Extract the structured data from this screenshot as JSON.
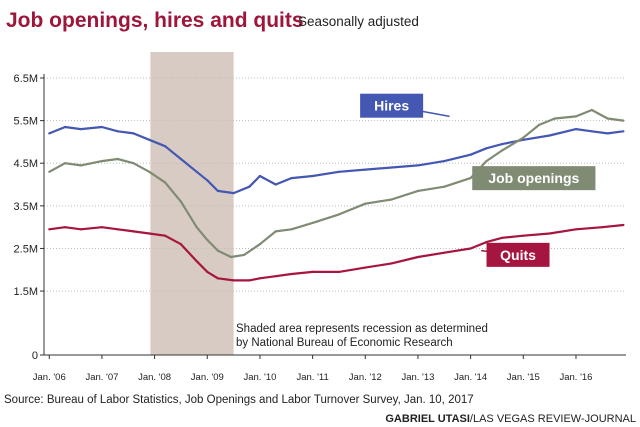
{
  "chart_data": {
    "type": "line",
    "title": "Job openings, hires and quits",
    "subtitle": "Seasonally adjusted",
    "y_tick_labels": [
      "0",
      "1.5M",
      "2.5M",
      "3.5M",
      "4.5M",
      "5.5M",
      "6.5M"
    ],
    "y_tick_values": [
      0,
      1.5,
      2.5,
      3.5,
      4.5,
      5.5,
      6.5
    ],
    "y_unit": "millions",
    "ylim": [
      0,
      6.5
    ],
    "x_tick_labels": [
      "Jan. '06",
      "Jan. '07",
      "Jan. '08",
      "Jan. '09",
      "Jan. '10",
      "Jan. '11",
      "Jan. '12",
      "Jan. '13",
      "Jan. '14",
      "Jan. '15",
      "Jan. '16"
    ],
    "x_tick_values": [
      2006,
      2007,
      2008,
      2009,
      2010,
      2011,
      2012,
      2013,
      2014,
      2015,
      2016
    ],
    "xlim": [
      2005.9,
      2016.95
    ],
    "grid": "horizontal",
    "recession": {
      "start": 2007.92,
      "end": 2009.5,
      "color": "#d8cbc4"
    },
    "note": [
      "Shaded area represents recession as determined",
      "by National Bureau of Economic Research"
    ],
    "source": "Source: Bureau of Labor Statistics, Job Openings and Labor Turnover Survey, Jan. 10, 2017",
    "credit_name": "GABRIEL UTASI",
    "credit_org": "/LAS VEGAS REVIEW-JOURNAL",
    "series": [
      {
        "name": "Hires",
        "color": "#4457b3",
        "points": [
          [
            2006.0,
            5.2
          ],
          [
            2006.3,
            5.35
          ],
          [
            2006.6,
            5.3
          ],
          [
            2007.0,
            5.35
          ],
          [
            2007.3,
            5.25
          ],
          [
            2007.6,
            5.2
          ],
          [
            2007.9,
            5.05
          ],
          [
            2008.2,
            4.9
          ],
          [
            2008.5,
            4.6
          ],
          [
            2008.8,
            4.3
          ],
          [
            2009.0,
            4.1
          ],
          [
            2009.2,
            3.85
          ],
          [
            2009.5,
            3.8
          ],
          [
            2009.8,
            3.95
          ],
          [
            2010.0,
            4.2
          ],
          [
            2010.3,
            4.0
          ],
          [
            2010.6,
            4.15
          ],
          [
            2011.0,
            4.2
          ],
          [
            2011.5,
            4.3
          ],
          [
            2012.0,
            4.35
          ],
          [
            2012.5,
            4.4
          ],
          [
            2013.0,
            4.45
          ],
          [
            2013.5,
            4.55
          ],
          [
            2014.0,
            4.7
          ],
          [
            2014.3,
            4.85
          ],
          [
            2014.6,
            4.95
          ],
          [
            2015.0,
            5.05
          ],
          [
            2015.5,
            5.15
          ],
          [
            2016.0,
            5.3
          ],
          [
            2016.3,
            5.25
          ],
          [
            2016.6,
            5.2
          ],
          [
            2016.9,
            5.25
          ]
        ]
      },
      {
        "name": "Job openings",
        "color": "#7f8b73",
        "points": [
          [
            2006.0,
            4.3
          ],
          [
            2006.3,
            4.5
          ],
          [
            2006.6,
            4.45
          ],
          [
            2007.0,
            4.55
          ],
          [
            2007.3,
            4.6
          ],
          [
            2007.6,
            4.5
          ],
          [
            2007.9,
            4.3
          ],
          [
            2008.2,
            4.05
          ],
          [
            2008.5,
            3.6
          ],
          [
            2008.8,
            3.0
          ],
          [
            2009.0,
            2.7
          ],
          [
            2009.2,
            2.45
          ],
          [
            2009.45,
            2.3
          ],
          [
            2009.7,
            2.35
          ],
          [
            2010.0,
            2.6
          ],
          [
            2010.3,
            2.9
          ],
          [
            2010.6,
            2.95
          ],
          [
            2011.0,
            3.1
          ],
          [
            2011.5,
            3.3
          ],
          [
            2012.0,
            3.55
          ],
          [
            2012.5,
            3.65
          ],
          [
            2013.0,
            3.85
          ],
          [
            2013.5,
            3.95
          ],
          [
            2014.0,
            4.15
          ],
          [
            2014.3,
            4.55
          ],
          [
            2014.6,
            4.8
          ],
          [
            2015.0,
            5.1
          ],
          [
            2015.3,
            5.4
          ],
          [
            2015.6,
            5.55
          ],
          [
            2016.0,
            5.6
          ],
          [
            2016.3,
            5.75
          ],
          [
            2016.6,
            5.55
          ],
          [
            2016.9,
            5.5
          ]
        ]
      },
      {
        "name": "Quits",
        "color": "#a6153f",
        "points": [
          [
            2006.0,
            2.95
          ],
          [
            2006.3,
            3.0
          ],
          [
            2006.6,
            2.95
          ],
          [
            2007.0,
            3.0
          ],
          [
            2007.3,
            2.95
          ],
          [
            2007.6,
            2.9
          ],
          [
            2007.9,
            2.85
          ],
          [
            2008.2,
            2.8
          ],
          [
            2008.5,
            2.6
          ],
          [
            2008.8,
            2.2
          ],
          [
            2009.0,
            1.95
          ],
          [
            2009.2,
            1.8
          ],
          [
            2009.5,
            1.75
          ],
          [
            2009.8,
            1.75
          ],
          [
            2010.0,
            1.8
          ],
          [
            2010.3,
            1.85
          ],
          [
            2010.6,
            1.9
          ],
          [
            2011.0,
            1.95
          ],
          [
            2011.5,
            1.95
          ],
          [
            2012.0,
            2.05
          ],
          [
            2012.5,
            2.15
          ],
          [
            2013.0,
            2.3
          ],
          [
            2013.5,
            2.4
          ],
          [
            2014.0,
            2.5
          ],
          [
            2014.3,
            2.65
          ],
          [
            2014.6,
            2.75
          ],
          [
            2015.0,
            2.8
          ],
          [
            2015.5,
            2.85
          ],
          [
            2016.0,
            2.95
          ],
          [
            2016.5,
            3.0
          ],
          [
            2016.9,
            3.05
          ]
        ]
      }
    ]
  }
}
